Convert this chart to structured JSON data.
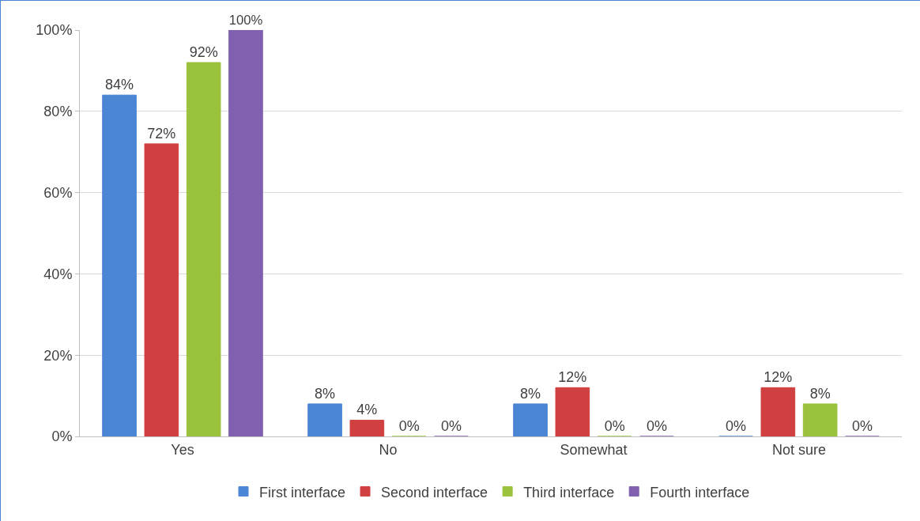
{
  "chart_data": {
    "type": "bar",
    "categories": [
      "Yes",
      "No",
      "Somewhat",
      "Not sure"
    ],
    "series": [
      {
        "name": "First interface",
        "color": "#4a86d4",
        "values": [
          84,
          8,
          8,
          0
        ],
        "value_labels": [
          "84%",
          "8%",
          "8%",
          "0%"
        ]
      },
      {
        "name": "Second interface",
        "color": "#d04040",
        "values": [
          72,
          4,
          12,
          12
        ],
        "value_labels": [
          "72%",
          "4%",
          "12%",
          "12%"
        ]
      },
      {
        "name": "Third interface",
        "color": "#9bc23c",
        "values": [
          92,
          0,
          0,
          8
        ],
        "value_labels": [
          "92%",
          "0%",
          "0%",
          "8%"
        ]
      },
      {
        "name": "Fourth interface",
        "color": "#8060b0",
        "values": [
          100,
          0,
          0,
          0
        ],
        "value_labels": [
          "100%",
          "0%",
          "0%",
          "0%"
        ]
      }
    ],
    "ylim": [
      0,
      100
    ],
    "yticks": [
      {
        "value": 0,
        "label": "0%"
      },
      {
        "value": 20,
        "label": "20%"
      },
      {
        "value": 40,
        "label": "40%"
      },
      {
        "value": 60,
        "label": "60%"
      },
      {
        "value": 80,
        "label": "80%"
      },
      {
        "value": 100,
        "label": "100%"
      }
    ],
    "grid": "y",
    "legend": "bottom"
  }
}
